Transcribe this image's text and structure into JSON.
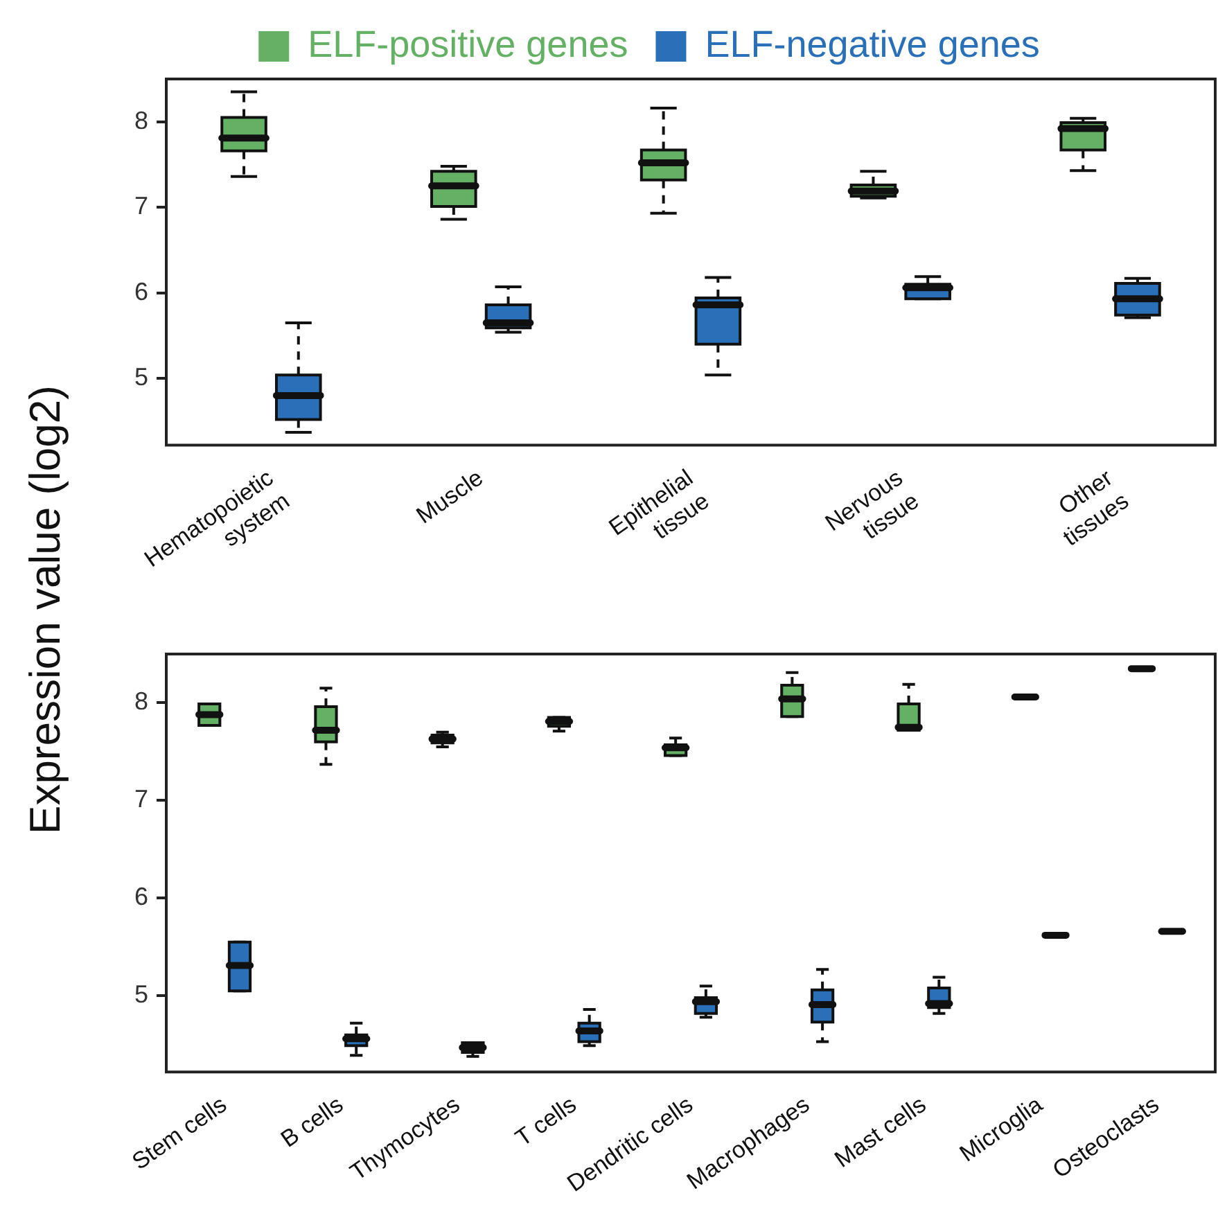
{
  "chart_data": [
    {
      "type": "box",
      "ylabel": "Expression value (log2)",
      "legend": "top",
      "categories": [
        "Hematopoietic\nsystem",
        "Muscle",
        "Epithelial\ntissue",
        "Nervous\ntissue",
        "Other\ntissues"
      ],
      "ylim": [
        4.22,
        8.5
      ],
      "yticks": [
        5,
        6,
        7,
        8
      ],
      "grid": false,
      "series": [
        {
          "name": "ELF-positive genes",
          "color": "#64b064",
          "boxes": [
            {
              "low": 7.36,
              "q1": 7.66,
              "median": 7.81,
              "q3": 8.05,
              "high": 8.35
            },
            {
              "low": 6.86,
              "q1": 7.01,
              "median": 7.25,
              "q3": 7.42,
              "high": 7.48
            },
            {
              "low": 6.93,
              "q1": 7.32,
              "median": 7.52,
              "q3": 7.67,
              "high": 8.16
            },
            {
              "low": 7.11,
              "q1": 7.13,
              "median": 7.19,
              "q3": 7.26,
              "high": 7.42
            },
            {
              "low": 7.43,
              "q1": 7.67,
              "median": 7.92,
              "q3": 7.99,
              "high": 8.04
            }
          ]
        },
        {
          "name": "ELF-negative genes",
          "color": "#2a70b8",
          "boxes": [
            {
              "low": 4.37,
              "q1": 4.52,
              "median": 4.8,
              "q3": 5.04,
              "high": 5.65
            },
            {
              "low": 5.54,
              "q1": 5.59,
              "median": 5.65,
              "q3": 5.86,
              "high": 6.07
            },
            {
              "low": 5.04,
              "q1": 5.4,
              "median": 5.86,
              "q3": 5.94,
              "high": 6.18
            },
            {
              "low": 5.93,
              "q1": 5.93,
              "median": 6.06,
              "q3": 6.1,
              "high": 6.19
            },
            {
              "low": 5.71,
              "q1": 5.74,
              "median": 5.93,
              "q3": 6.11,
              "high": 6.17
            }
          ]
        }
      ]
    },
    {
      "type": "box",
      "categories": [
        "Stem cells",
        "B cells",
        "Thymocytes",
        "T cells",
        "Dendritic cells",
        "Macrophages",
        "Mast cells",
        "Microglia",
        "Osteoclasts"
      ],
      "ylim": [
        4.22,
        8.5
      ],
      "yticks": [
        5,
        6,
        7,
        8
      ],
      "grid": false,
      "series": [
        {
          "color": "#64b064",
          "boxes": [
            {
              "low": 7.77,
              "q1": 7.77,
              "median": 7.88,
              "q3": 7.99,
              "high": 7.99
            },
            {
              "low": 7.37,
              "q1": 7.6,
              "median": 7.72,
              "q3": 7.96,
              "high": 8.15
            },
            {
              "low": 7.55,
              "q1": 7.59,
              "median": 7.63,
              "q3": 7.67,
              "high": 7.7
            },
            {
              "low": 7.71,
              "q1": 7.76,
              "median": 7.81,
              "q3": 7.85,
              "high": 7.85
            },
            {
              "low": 7.46,
              "q1": 7.46,
              "median": 7.54,
              "q3": 7.57,
              "high": 7.64
            },
            {
              "low": 7.86,
              "q1": 7.86,
              "median": 8.04,
              "q3": 8.18,
              "high": 8.31
            },
            {
              "low": 7.72,
              "q1": 7.72,
              "median": 7.75,
              "q3": 7.99,
              "high": 8.19
            },
            {
              "low": 8.06,
              "q1": 8.06,
              "median": 8.06,
              "q3": 8.06,
              "high": 8.06
            },
            {
              "low": 8.35,
              "q1": 8.35,
              "median": 8.35,
              "q3": 8.35,
              "high": 8.35
            }
          ]
        },
        {
          "color": "#2a70b8",
          "boxes": [
            {
              "low": 5.05,
              "q1": 5.05,
              "median": 5.31,
              "q3": 5.55,
              "high": 5.55
            },
            {
              "low": 4.39,
              "q1": 4.49,
              "median": 4.56,
              "q3": 4.6,
              "high": 4.72
            },
            {
              "low": 4.38,
              "q1": 4.42,
              "median": 4.47,
              "q3": 4.52,
              "high": 4.52
            },
            {
              "low": 4.49,
              "q1": 4.53,
              "median": 4.64,
              "q3": 4.72,
              "high": 4.86
            },
            {
              "low": 4.78,
              "q1": 4.82,
              "median": 4.94,
              "q3": 4.98,
              "high": 5.1
            },
            {
              "low": 4.53,
              "q1": 4.73,
              "median": 4.91,
              "q3": 5.06,
              "high": 5.27
            },
            {
              "low": 4.82,
              "q1": 4.88,
              "median": 4.92,
              "q3": 5.08,
              "high": 5.19
            },
            {
              "low": 5.62,
              "q1": 5.62,
              "median": 5.62,
              "q3": 5.62,
              "high": 5.62
            },
            {
              "low": 5.66,
              "q1": 5.66,
              "median": 5.66,
              "q3": 5.66,
              "high": 5.66
            }
          ]
        }
      ]
    }
  ]
}
